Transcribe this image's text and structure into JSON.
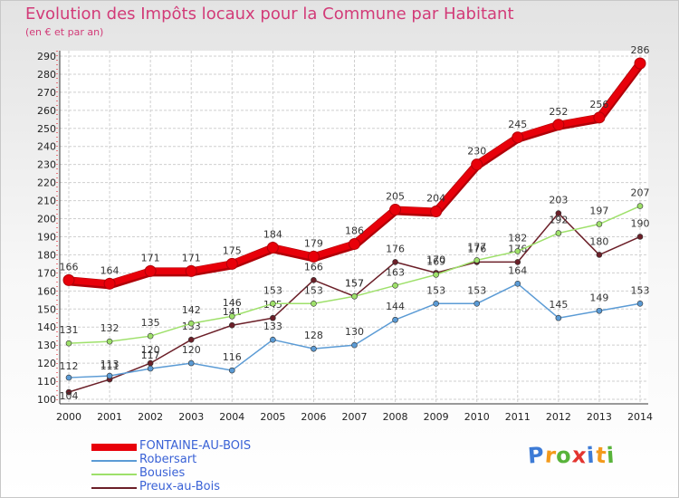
{
  "header": {
    "title": "Evolution des Impôts locaux pour la Commune par Habitant",
    "subtitle": "(en € et par an)"
  },
  "logo": {
    "letters": [
      "P",
      "r",
      "o",
      "x",
      "i",
      "t",
      "i"
    ],
    "colors": [
      "#3d7bd6",
      "#f39a1c",
      "#58b33a",
      "#e3342f",
      "#3d7bd6",
      "#f39a1c",
      "#58b33a"
    ]
  },
  "chart_data": {
    "type": "line",
    "title": "Evolution des Impôts locaux pour la Commune par Habitant",
    "subtitle": "(en € et par an)",
    "xlabel": "",
    "ylabel": "",
    "categories": [
      "2000",
      "2001",
      "2002",
      "2003",
      "2004",
      "2005",
      "2006",
      "2007",
      "2008",
      "2009",
      "2010",
      "2011",
      "2012",
      "2013",
      "2014"
    ],
    "ylim": [
      100,
      290
    ],
    "ytick_step": 10,
    "grid": true,
    "legend": "bottom-left",
    "series": [
      {
        "name": "FONTAINE-AU-BOIS",
        "color": "#e8000a",
        "values": [
          166,
          164,
          171,
          171,
          175,
          184,
          179,
          186,
          205,
          204,
          230,
          245,
          252,
          256,
          286
        ]
      },
      {
        "name": "Robersart",
        "color": "#5b9bd5",
        "values": [
          112,
          113,
          117,
          120,
          116,
          133,
          128,
          130,
          144,
          153,
          153,
          164,
          145,
          149,
          153
        ]
      },
      {
        "name": "Bousies",
        "color": "#9ee06a",
        "values": [
          131,
          132,
          135,
          142,
          146,
          153,
          153,
          157,
          163,
          169,
          177,
          182,
          192,
          197,
          207
        ]
      },
      {
        "name": "Preux-au-Bois",
        "color": "#6b1f28",
        "values": [
          104,
          111,
          120,
          133,
          141,
          145,
          166,
          157,
          176,
          170,
          176,
          176,
          203,
          180,
          190
        ]
      }
    ]
  }
}
